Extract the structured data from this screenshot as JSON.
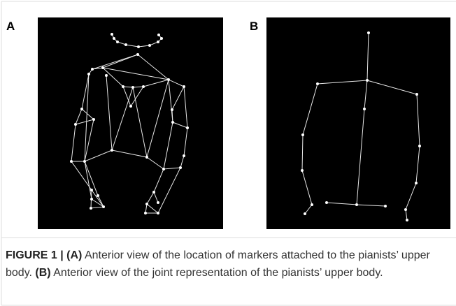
{
  "panels": [
    {
      "label": "A"
    },
    {
      "label": "B"
    }
  ],
  "caption": {
    "figure_label": "FIGURE 1 |",
    "parts": [
      {
        "label": "(A)",
        "text": " Anterior view of the location of markers attached to the pianists’ upper body. "
      },
      {
        "label": "(B)",
        "text": " Anterior view of the joint representation of the pianists’ upper body."
      }
    ]
  }
}
